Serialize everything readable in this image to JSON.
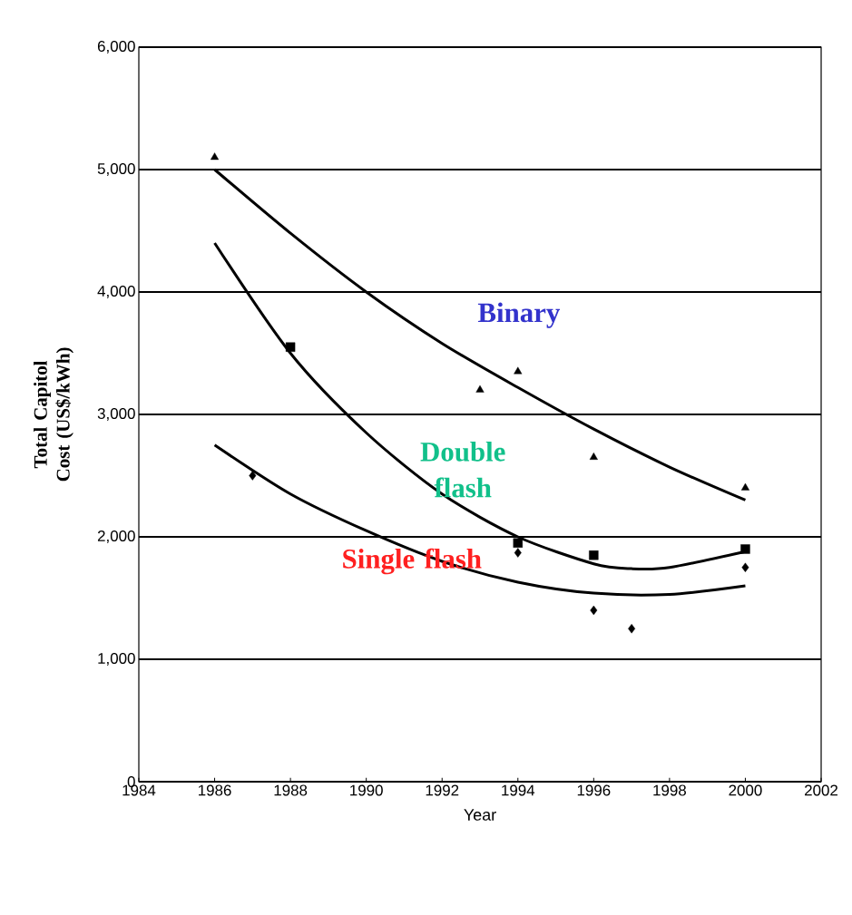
{
  "chart_data": {
    "type": "scatter",
    "xlabel": "Year",
    "ylabel": "Total Capitol Cost (US$/kWh)",
    "xlim": [
      1984,
      2002
    ],
    "xticks": [
      1984,
      1986,
      1988,
      1990,
      1992,
      1994,
      1996,
      1998,
      2000,
      2002
    ],
    "ylim": [
      0,
      6000
    ],
    "yticks": [
      {
        "value": 0,
        "label": "0"
      },
      {
        "value": 1000,
        "label": "1,000"
      },
      {
        "value": 2000,
        "label": "2,000"
      },
      {
        "value": 3000,
        "label": "3,000"
      },
      {
        "value": 4000,
        "label": "4,000"
      },
      {
        "value": 5000,
        "label": "5,000"
      },
      {
        "value": 6000,
        "label": "6,000"
      }
    ],
    "grid": "y",
    "series": [
      {
        "marker": "triangle",
        "color": "#000000",
        "x": [
          1986,
          1993,
          1994,
          1996,
          2000
        ],
        "values": [
          5100,
          3200,
          3350,
          2650,
          2400
        ]
      },
      {
        "marker": "square",
        "color": "#000000",
        "x": [
          1988,
          1994,
          1996,
          2000
        ],
        "values": [
          3550,
          1950,
          1850,
          1900
        ]
      },
      {
        "marker": "diamond",
        "color": "#000000",
        "x": [
          1987,
          1994,
          1996,
          1997,
          2000
        ],
        "values": [
          2500,
          1870,
          1400,
          1250,
          1750
        ]
      },
      {
        "type": "line",
        "marker": "none",
        "color": "#000000",
        "x": [
          1986,
          1988,
          1990,
          1992,
          1994,
          1996,
          1998,
          2000
        ],
        "values": [
          5000,
          4480,
          4000,
          3580,
          3220,
          2880,
          2570,
          2300
        ]
      },
      {
        "type": "line",
        "marker": "none",
        "color": "#000000",
        "x": [
          1986,
          1988,
          1990,
          1992,
          1994,
          1996,
          1997,
          1998,
          2000
        ],
        "values": [
          4400,
          3500,
          2850,
          2350,
          2000,
          1780,
          1740,
          1750,
          1880
        ]
      },
      {
        "type": "line",
        "marker": "none",
        "color": "#000000",
        "x": [
          1986,
          1988,
          1990,
          1992,
          1994,
          1996,
          1998,
          2000
        ],
        "values": [
          2750,
          2350,
          2050,
          1800,
          1630,
          1540,
          1530,
          1600
        ]
      }
    ],
    "annotations": [
      "Binary",
      "Double flash",
      "Single flash"
    ]
  }
}
